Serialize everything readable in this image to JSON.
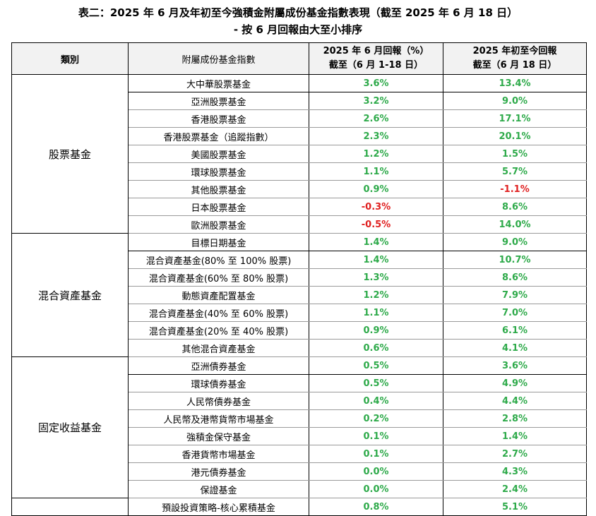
{
  "title": {
    "line1": "表二：2025 年 6 月及年初至今強積金附屬成份基金指數表現（截至 2025 年 6 月 18 日）",
    "line2": "- 按 6 月回報由大至小排序"
  },
  "headers": {
    "category": "類別",
    "index": "附屬成份基金指數",
    "june_l1": "2025 年 6 月回報（%）",
    "june_l2": "截至（6 月 1-18 日）",
    "ytd_l1": "2025 年初至今回報",
    "ytd_l2": "截至（6 月 18 日）"
  },
  "colors": {
    "positive": "#2eaa4a",
    "negative": "#e02020"
  },
  "groups": [
    {
      "category": "股票基金",
      "rows": [
        {
          "name": "大中華股票基金",
          "june": "3.6%",
          "ytd": "13.4%"
        },
        {
          "name": "亞洲股票基金",
          "june": "3.2%",
          "ytd": "9.0%"
        },
        {
          "name": "香港股票基金",
          "june": "2.6%",
          "ytd": "17.1%"
        },
        {
          "name": "香港股票基金（追蹤指數）",
          "june": "2.3%",
          "ytd": "20.1%"
        },
        {
          "name": "美國股票基金",
          "june": "1.2%",
          "ytd": "1.5%"
        },
        {
          "name": "環球股票基金",
          "june": "1.1%",
          "ytd": "5.7%"
        },
        {
          "name": "其他股票基金",
          "june": "0.9%",
          "ytd": "-1.1%"
        },
        {
          "name": "日本股票基金",
          "june": "-0.3%",
          "ytd": "8.6%"
        },
        {
          "name": "歐洲股票基金",
          "june": "-0.5%",
          "ytd": "14.0%"
        }
      ]
    },
    {
      "category": "混合資產基金",
      "rows": [
        {
          "name": "目標日期基金",
          "june": "1.4%",
          "ytd": "9.0%"
        },
        {
          "name": "混合資產基金(80% 至 100% 股票)",
          "june": "1.4%",
          "ytd": "10.7%"
        },
        {
          "name": "混合資產基金(60% 至 80% 股票)",
          "june": "1.3%",
          "ytd": "8.6%"
        },
        {
          "name": "動態資產配置基金",
          "june": "1.2%",
          "ytd": "7.9%"
        },
        {
          "name": "混合資產基金(40% 至 60% 股票)",
          "june": "1.1%",
          "ytd": "7.0%"
        },
        {
          "name": "混合資產基金(20% 至 40% 股票)",
          "june": "0.9%",
          "ytd": "6.1%"
        },
        {
          "name": "其他混合資產基金",
          "june": "0.6%",
          "ytd": "4.1%"
        }
      ]
    },
    {
      "category": "固定收益基金",
      "rows": [
        {
          "name": "亞洲債券基金",
          "june": "0.5%",
          "ytd": "3.6%"
        },
        {
          "name": "環球債券基金",
          "june": "0.5%",
          "ytd": "4.9%"
        },
        {
          "name": "人民幣債券基金",
          "june": "0.4%",
          "ytd": "4.4%"
        },
        {
          "name": "人民幣及港幣貨幣市場基金",
          "june": "0.2%",
          "ytd": "2.8%"
        },
        {
          "name": "強積金保守基金",
          "june": "0.1%",
          "ytd": "1.4%"
        },
        {
          "name": "香港貨幣市場基金",
          "june": "0.1%",
          "ytd": "2.7%"
        },
        {
          "name": "港元債券基金",
          "june": "0.0%",
          "ytd": "4.3%"
        },
        {
          "name": "保證基金",
          "june": "0.0%",
          "ytd": "2.4%"
        }
      ]
    },
    {
      "category": "",
      "rows": [
        {
          "name": "預設投資策略-核心累積基金",
          "june": "0.8%",
          "ytd": "5.1%"
        }
      ]
    }
  ]
}
